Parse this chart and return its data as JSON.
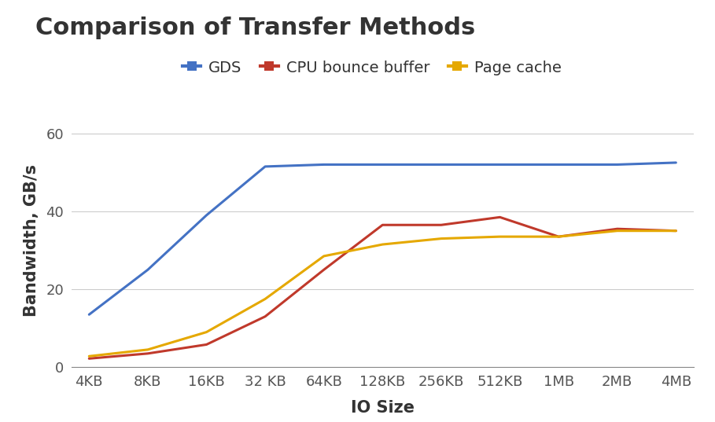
{
  "title": "Comparison of Transfer Methods",
  "xlabel": "IO Size",
  "ylabel": "Bandwidth, GB/s",
  "x_labels": [
    "4KB",
    "8KB",
    "16KB",
    "32 KB",
    "64KB",
    "128KB",
    "256KB",
    "512KB",
    "1MB",
    "2MB",
    "4MB"
  ],
  "series": [
    {
      "label": "GDS",
      "color": "#4472C4",
      "values": [
        13.5,
        25.0,
        39.0,
        51.5,
        52.0,
        52.0,
        52.0,
        52.0,
        52.0,
        52.0,
        52.5
      ]
    },
    {
      "label": "CPU bounce buffer",
      "color": "#C0392B",
      "values": [
        2.2,
        3.5,
        5.8,
        13.0,
        25.0,
        36.5,
        36.5,
        38.5,
        33.5,
        35.5,
        35.0
      ]
    },
    {
      "label": "Page cache",
      "color": "#E5A800",
      "values": [
        2.8,
        4.5,
        9.0,
        17.5,
        28.5,
        31.5,
        33.0,
        33.5,
        33.5,
        35.0,
        35.0
      ]
    }
  ],
  "ylim": [
    0,
    65
  ],
  "yticks": [
    0,
    20,
    40,
    60
  ],
  "title_fontsize": 22,
  "label_fontsize": 15,
  "tick_fontsize": 13,
  "legend_fontsize": 14,
  "line_width": 2.2,
  "background_color": "#ffffff",
  "grid_color": "#cccccc"
}
